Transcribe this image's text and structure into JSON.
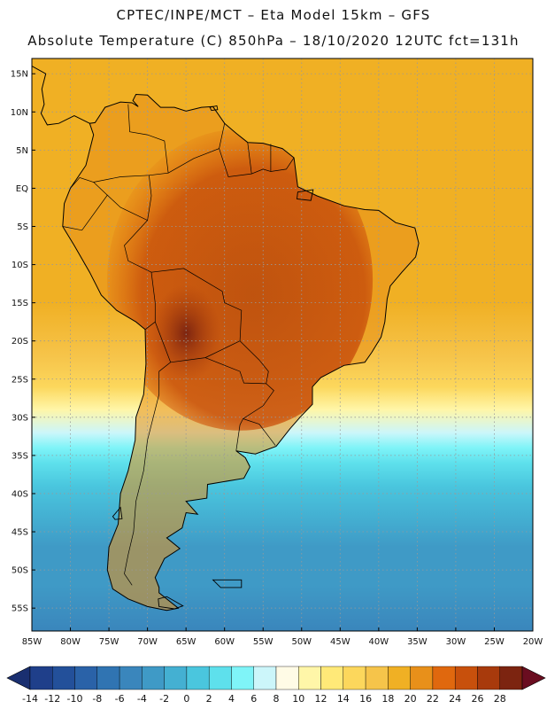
{
  "header": {
    "line1": "CPTEC/INPE/MCT –  Eta Model 15km – GFS",
    "line2": "Absolute Temperature (C) 850hPa – 18/10/2020 12UTC fct=131h"
  },
  "map": {
    "region": "South America",
    "projection": "lat-lon",
    "lon_range": [
      -85,
      -20
    ],
    "lat_range": [
      -58,
      17
    ],
    "gridlines": true,
    "lat_ticks": [
      {
        "lat": 15,
        "label": "15N"
      },
      {
        "lat": 10,
        "label": "10N"
      },
      {
        "lat": 5,
        "label": "5N"
      },
      {
        "lat": 0,
        "label": "EQ"
      },
      {
        "lat": -5,
        "label": "5S"
      },
      {
        "lat": -10,
        "label": "10S"
      },
      {
        "lat": -15,
        "label": "15S"
      },
      {
        "lat": -20,
        "label": "20S"
      },
      {
        "lat": -25,
        "label": "25S"
      },
      {
        "lat": -30,
        "label": "30S"
      },
      {
        "lat": -35,
        "label": "35S"
      },
      {
        "lat": -40,
        "label": "40S"
      },
      {
        "lat": -45,
        "label": "45S"
      },
      {
        "lat": -50,
        "label": "50S"
      },
      {
        "lat": -55,
        "label": "55S"
      }
    ],
    "lon_ticks": [
      {
        "lon": -85,
        "label": "85W"
      },
      {
        "lon": -80,
        "label": "80W"
      },
      {
        "lon": -75,
        "label": "75W"
      },
      {
        "lon": -70,
        "label": "70W"
      },
      {
        "lon": -65,
        "label": "65W"
      },
      {
        "lon": -60,
        "label": "60W"
      },
      {
        "lon": -55,
        "label": "55W"
      },
      {
        "lon": -50,
        "label": "50W"
      },
      {
        "lon": -45,
        "label": "45W"
      },
      {
        "lon": -40,
        "label": "40W"
      },
      {
        "lon": -35,
        "label": "35W"
      },
      {
        "lon": -30,
        "label": "30W"
      },
      {
        "lon": -25,
        "label": "25W"
      },
      {
        "lon": -20,
        "label": "20W"
      }
    ],
    "field_bands": [
      {
        "lat": 17,
        "value": 19
      },
      {
        "lat": 10,
        "value": 19
      },
      {
        "lat": 0,
        "value": 19
      },
      {
        "lat": -15,
        "value": 18
      },
      {
        "lat": -22,
        "value": 17
      },
      {
        "lat": -26,
        "value": 14
      },
      {
        "lat": -29,
        "value": 10
      },
      {
        "lat": -32,
        "value": 7
      },
      {
        "lat": -34,
        "value": 5
      },
      {
        "lat": -36,
        "value": 3
      },
      {
        "lat": -39,
        "value": 1
      },
      {
        "lat": -43,
        "value": -2
      },
      {
        "lat": -47,
        "value": -3
      },
      {
        "lat": -52,
        "value": -4
      },
      {
        "lat": -58,
        "value": -5
      }
    ],
    "land_core_value": 23,
    "hot_spot": {
      "lon": -65,
      "lat": -19,
      "value": 26
    }
  },
  "colorbar": {
    "ticks": [
      "-14",
      "-12",
      "-10",
      "-8",
      "-6",
      "-4",
      "-2",
      "0",
      "2",
      "4",
      "6",
      "8",
      "10",
      "12",
      "14",
      "16",
      "18",
      "20",
      "22",
      "24",
      "26",
      "28"
    ],
    "colors": [
      "#1f3f8a",
      "#23509a",
      "#2a62a8",
      "#3074b2",
      "#3a86bc",
      "#3f9ac6",
      "#44b0d2",
      "#4ac6de",
      "#5ee0ec",
      "#7ff4f8",
      "#ccf6fa",
      "#fffbe6",
      "#fff6a8",
      "#ffe978",
      "#fcd75c",
      "#f6c44a",
      "#f0b024",
      "#e8901a",
      "#e0680e",
      "#c8500c",
      "#a83a0c",
      "#7c2410"
    ],
    "under_color": "#1a2f70",
    "over_color": "#6a0d20"
  }
}
